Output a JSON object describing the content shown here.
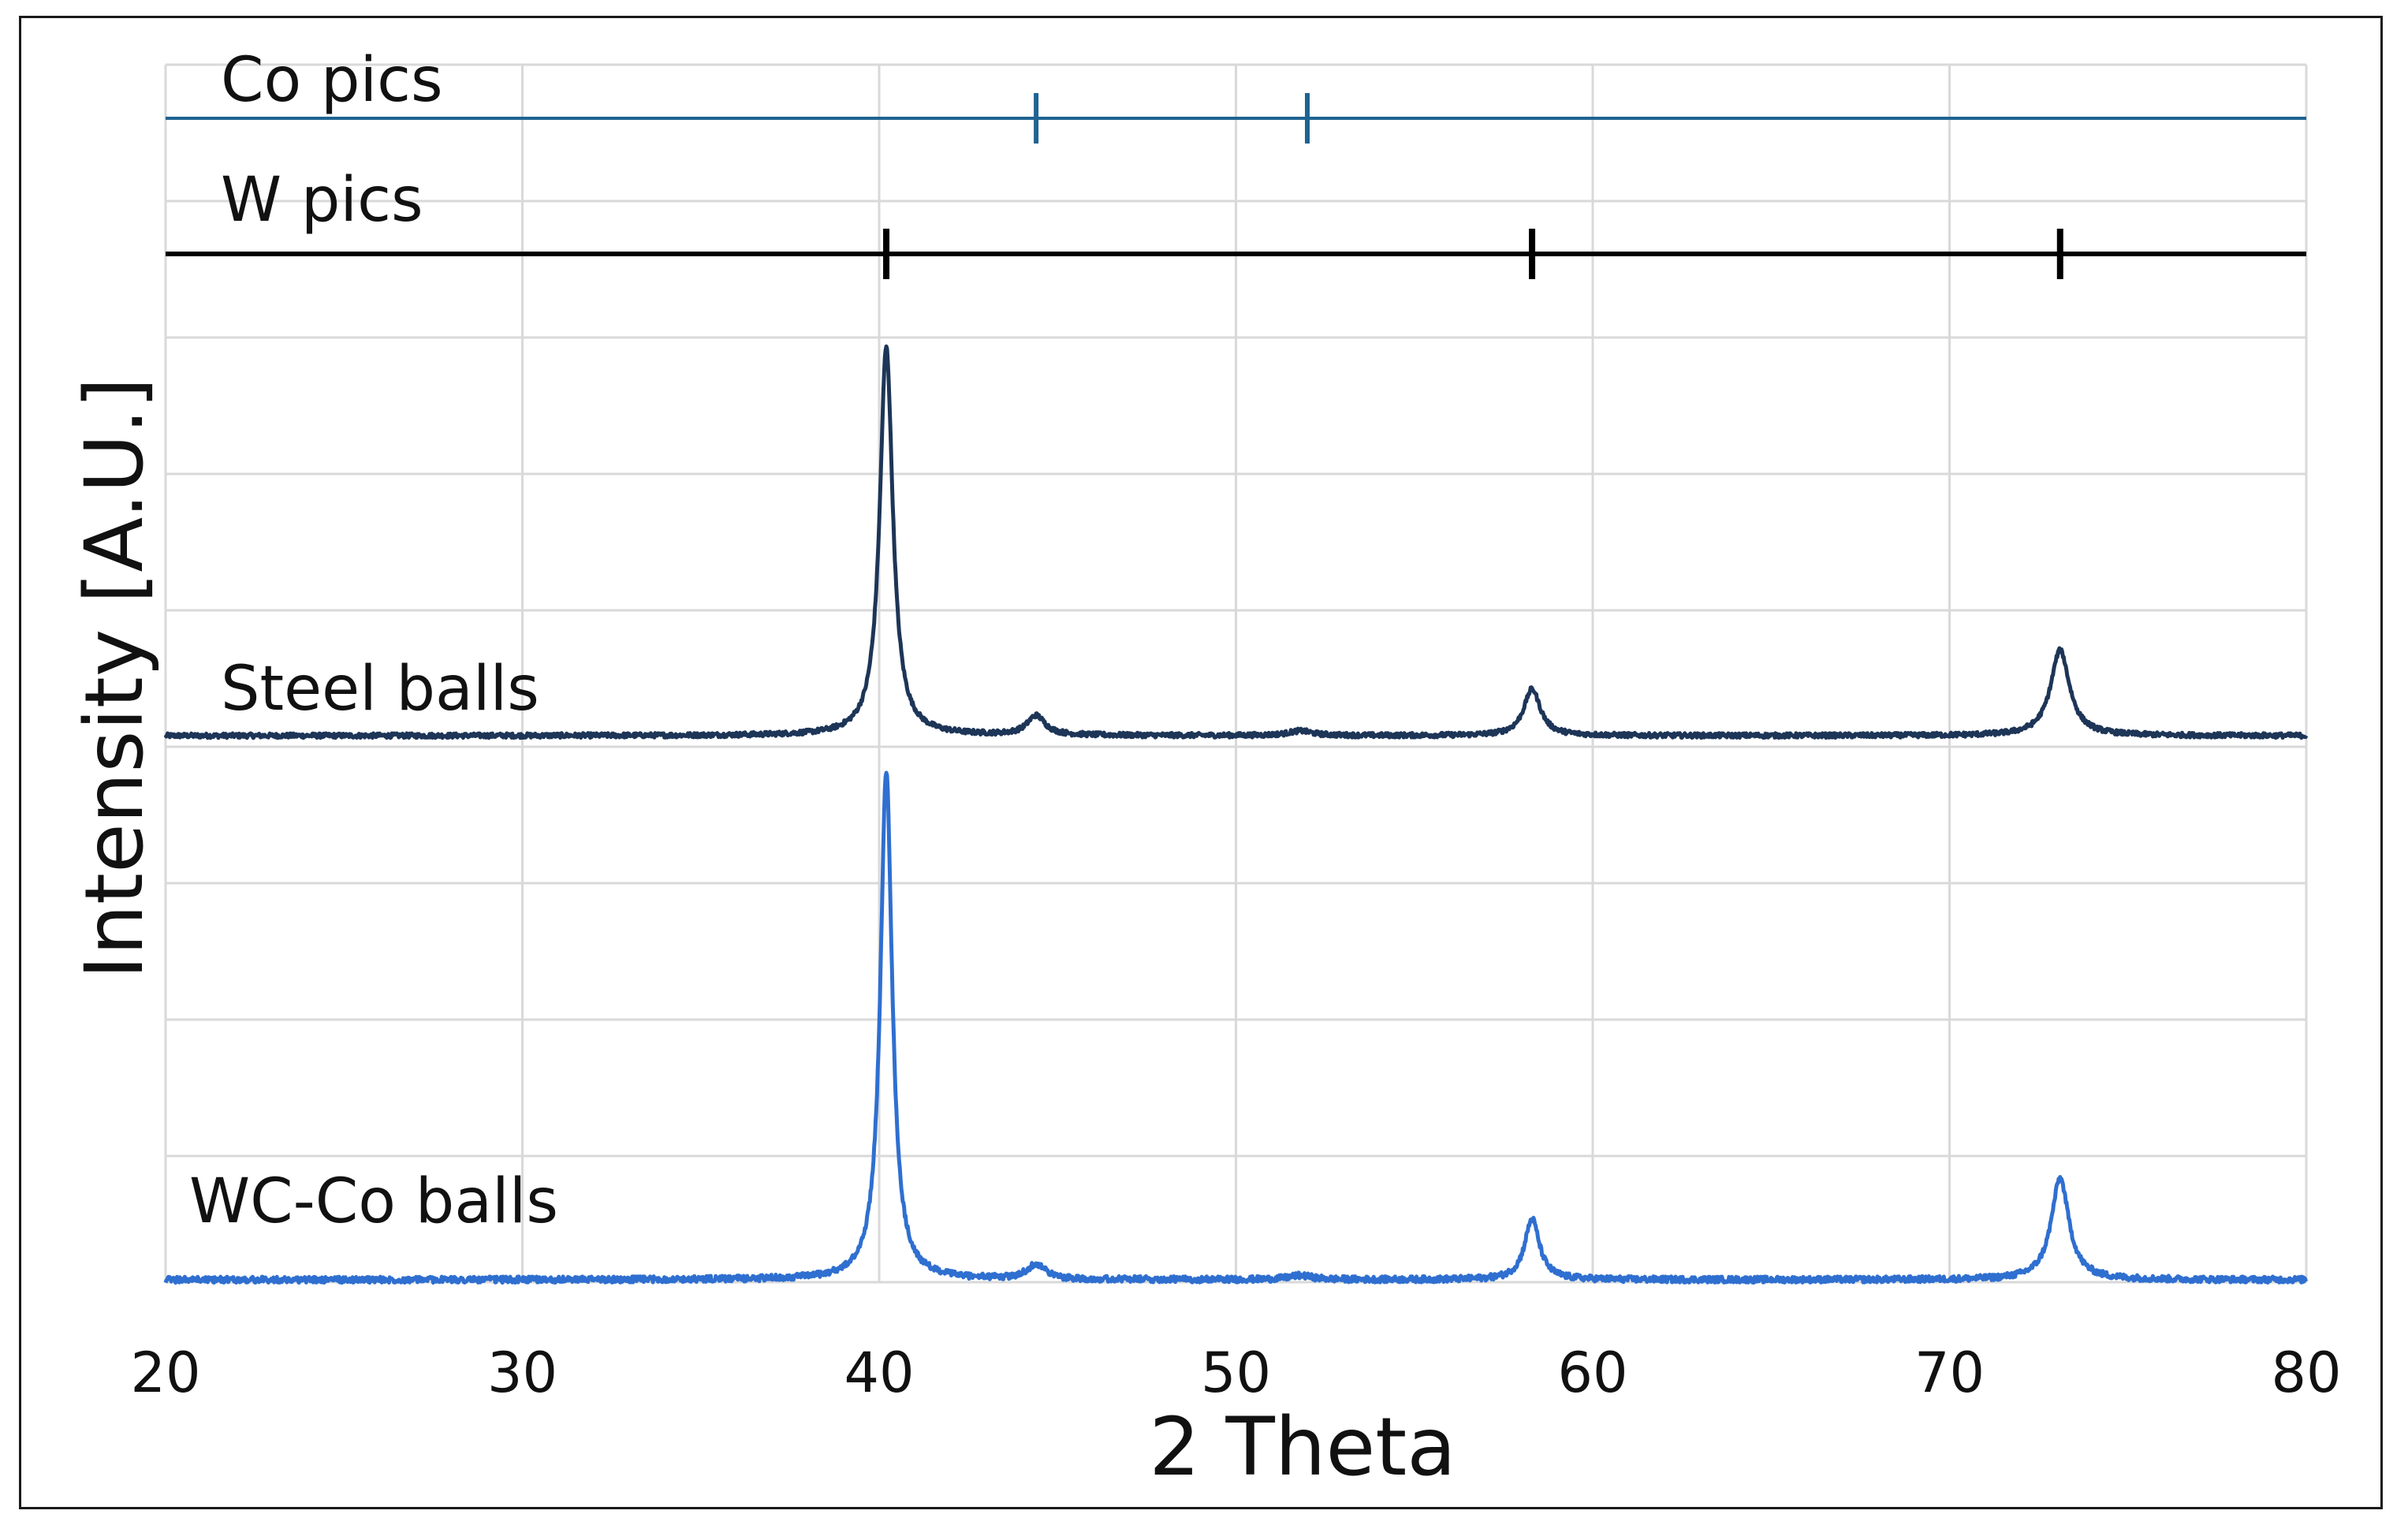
{
  "chart_data": {
    "type": "line",
    "xlabel": "2 Theta",
    "ylabel": "Intensity [A.U.]",
    "xlim": [
      20,
      80
    ],
    "x_ticks": [
      "20",
      "30",
      "40",
      "50",
      "60",
      "70",
      "80"
    ],
    "grid": true,
    "reference_markers": [
      {
        "name": "Co pics",
        "color": "#1f6391",
        "positions": [
          44.4,
          52.0
        ]
      },
      {
        "name": "W pics",
        "color": "#000000",
        "positions": [
          40.2,
          58.3,
          73.1
        ]
      }
    ],
    "series": [
      {
        "name": "Steel balls",
        "color": "#1d3557",
        "baseline": 0.05,
        "peaks": [
          {
            "x": 40.2,
            "height": 1.0,
            "width": 0.22
          },
          {
            "x": 44.4,
            "height": 0.05,
            "width": 0.3
          },
          {
            "x": 51.8,
            "height": 0.012,
            "width": 0.4
          },
          {
            "x": 58.3,
            "height": 0.12,
            "width": 0.28
          },
          {
            "x": 73.1,
            "height": 0.22,
            "width": 0.32
          }
        ]
      },
      {
        "name": "WC-Co balls",
        "color": "#2f6fd0",
        "baseline": 0.015,
        "peaks": [
          {
            "x": 40.2,
            "height": 1.0,
            "width": 0.2
          },
          {
            "x": 44.4,
            "height": 0.03,
            "width": 0.3
          },
          {
            "x": 51.8,
            "height": 0.008,
            "width": 0.4
          },
          {
            "x": 58.3,
            "height": 0.12,
            "width": 0.25
          },
          {
            "x": 73.1,
            "height": 0.2,
            "width": 0.3
          }
        ]
      }
    ]
  }
}
